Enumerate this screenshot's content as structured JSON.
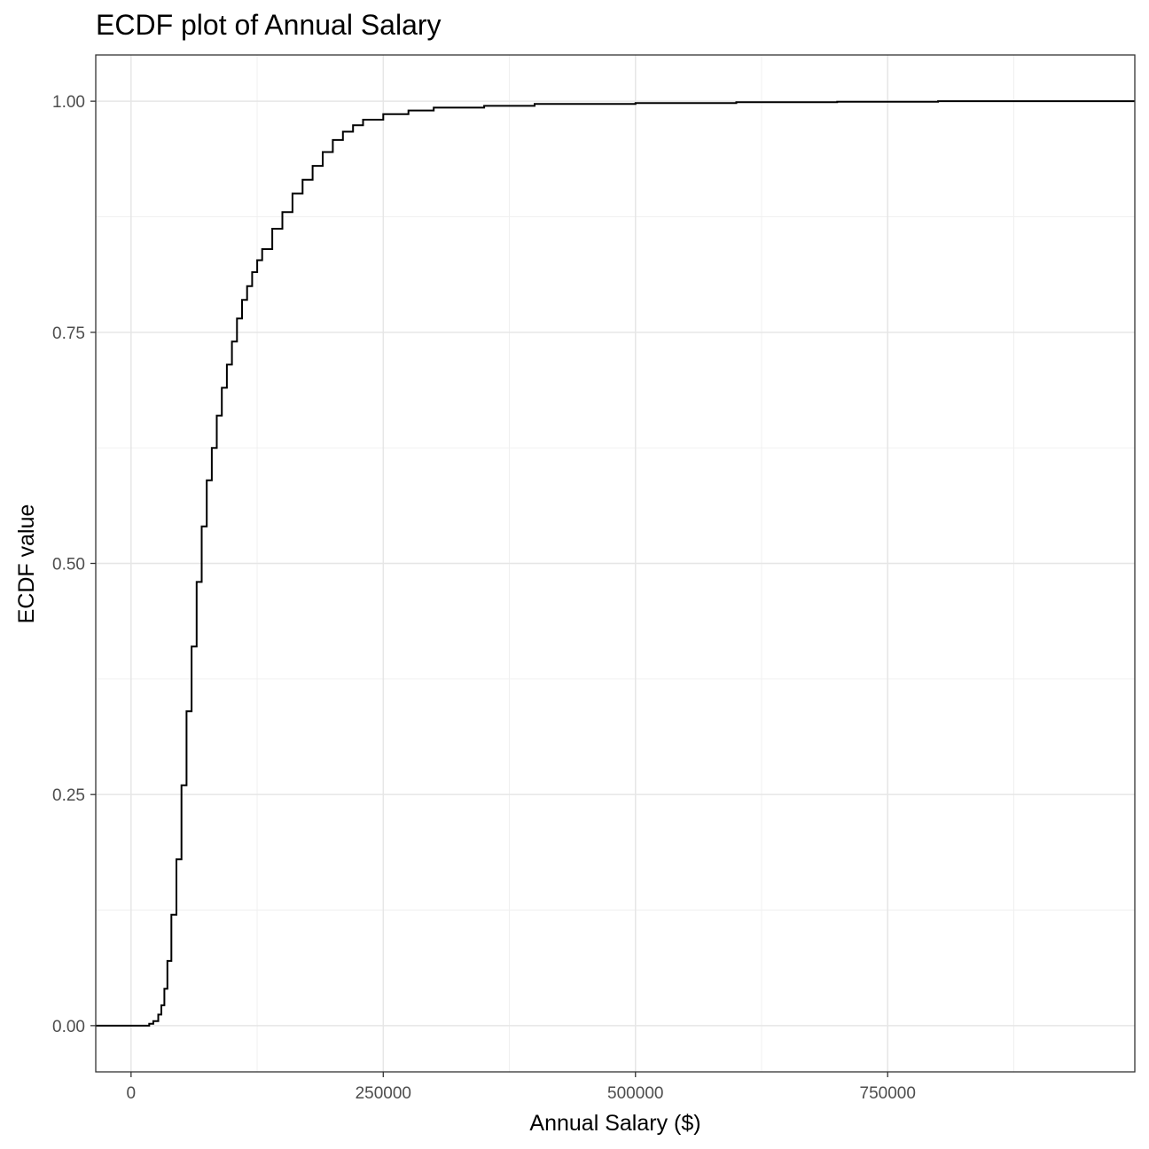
{
  "chart_data": {
    "type": "line",
    "title": "ECDF plot of Annual Salary",
    "xlabel": "Annual Salary ($)",
    "ylabel": "ECDF value",
    "xlim": [
      -35000,
      995000
    ],
    "ylim": [
      -0.05,
      1.05
    ],
    "x_ticks": [
      0,
      250000,
      500000,
      750000
    ],
    "x_tick_labels": [
      "0",
      "250000",
      "500000",
      "750000"
    ],
    "y_ticks": [
      0,
      0.25,
      0.5,
      0.75,
      1.0
    ],
    "y_tick_labels": [
      "0.00",
      "0.25",
      "0.50",
      "0.75",
      "1.00"
    ],
    "grid": true,
    "series": [
      {
        "x": [
          -35000,
          10000,
          18000,
          22000,
          27000,
          30000,
          33000,
          36000,
          40000,
          45000,
          50000,
          55000,
          60000,
          65000,
          70000,
          75000,
          80000,
          85000,
          90000,
          95000,
          100000,
          105000,
          110000,
          115000,
          120000,
          125000,
          130000,
          140000,
          150000,
          160000,
          170000,
          180000,
          190000,
          200000,
          210000,
          220000,
          230000,
          250000,
          275000,
          300000,
          350000,
          400000,
          500000,
          600000,
          700000,
          800000,
          995000
        ],
        "y": [
          0.0,
          0.0,
          0.002,
          0.005,
          0.012,
          0.022,
          0.04,
          0.07,
          0.12,
          0.18,
          0.26,
          0.34,
          0.41,
          0.48,
          0.54,
          0.59,
          0.625,
          0.66,
          0.69,
          0.715,
          0.74,
          0.765,
          0.785,
          0.8,
          0.815,
          0.828,
          0.84,
          0.862,
          0.88,
          0.9,
          0.915,
          0.93,
          0.945,
          0.958,
          0.967,
          0.974,
          0.98,
          0.986,
          0.99,
          0.993,
          0.995,
          0.997,
          0.998,
          0.999,
          0.9995,
          1.0,
          1.0
        ]
      }
    ]
  }
}
